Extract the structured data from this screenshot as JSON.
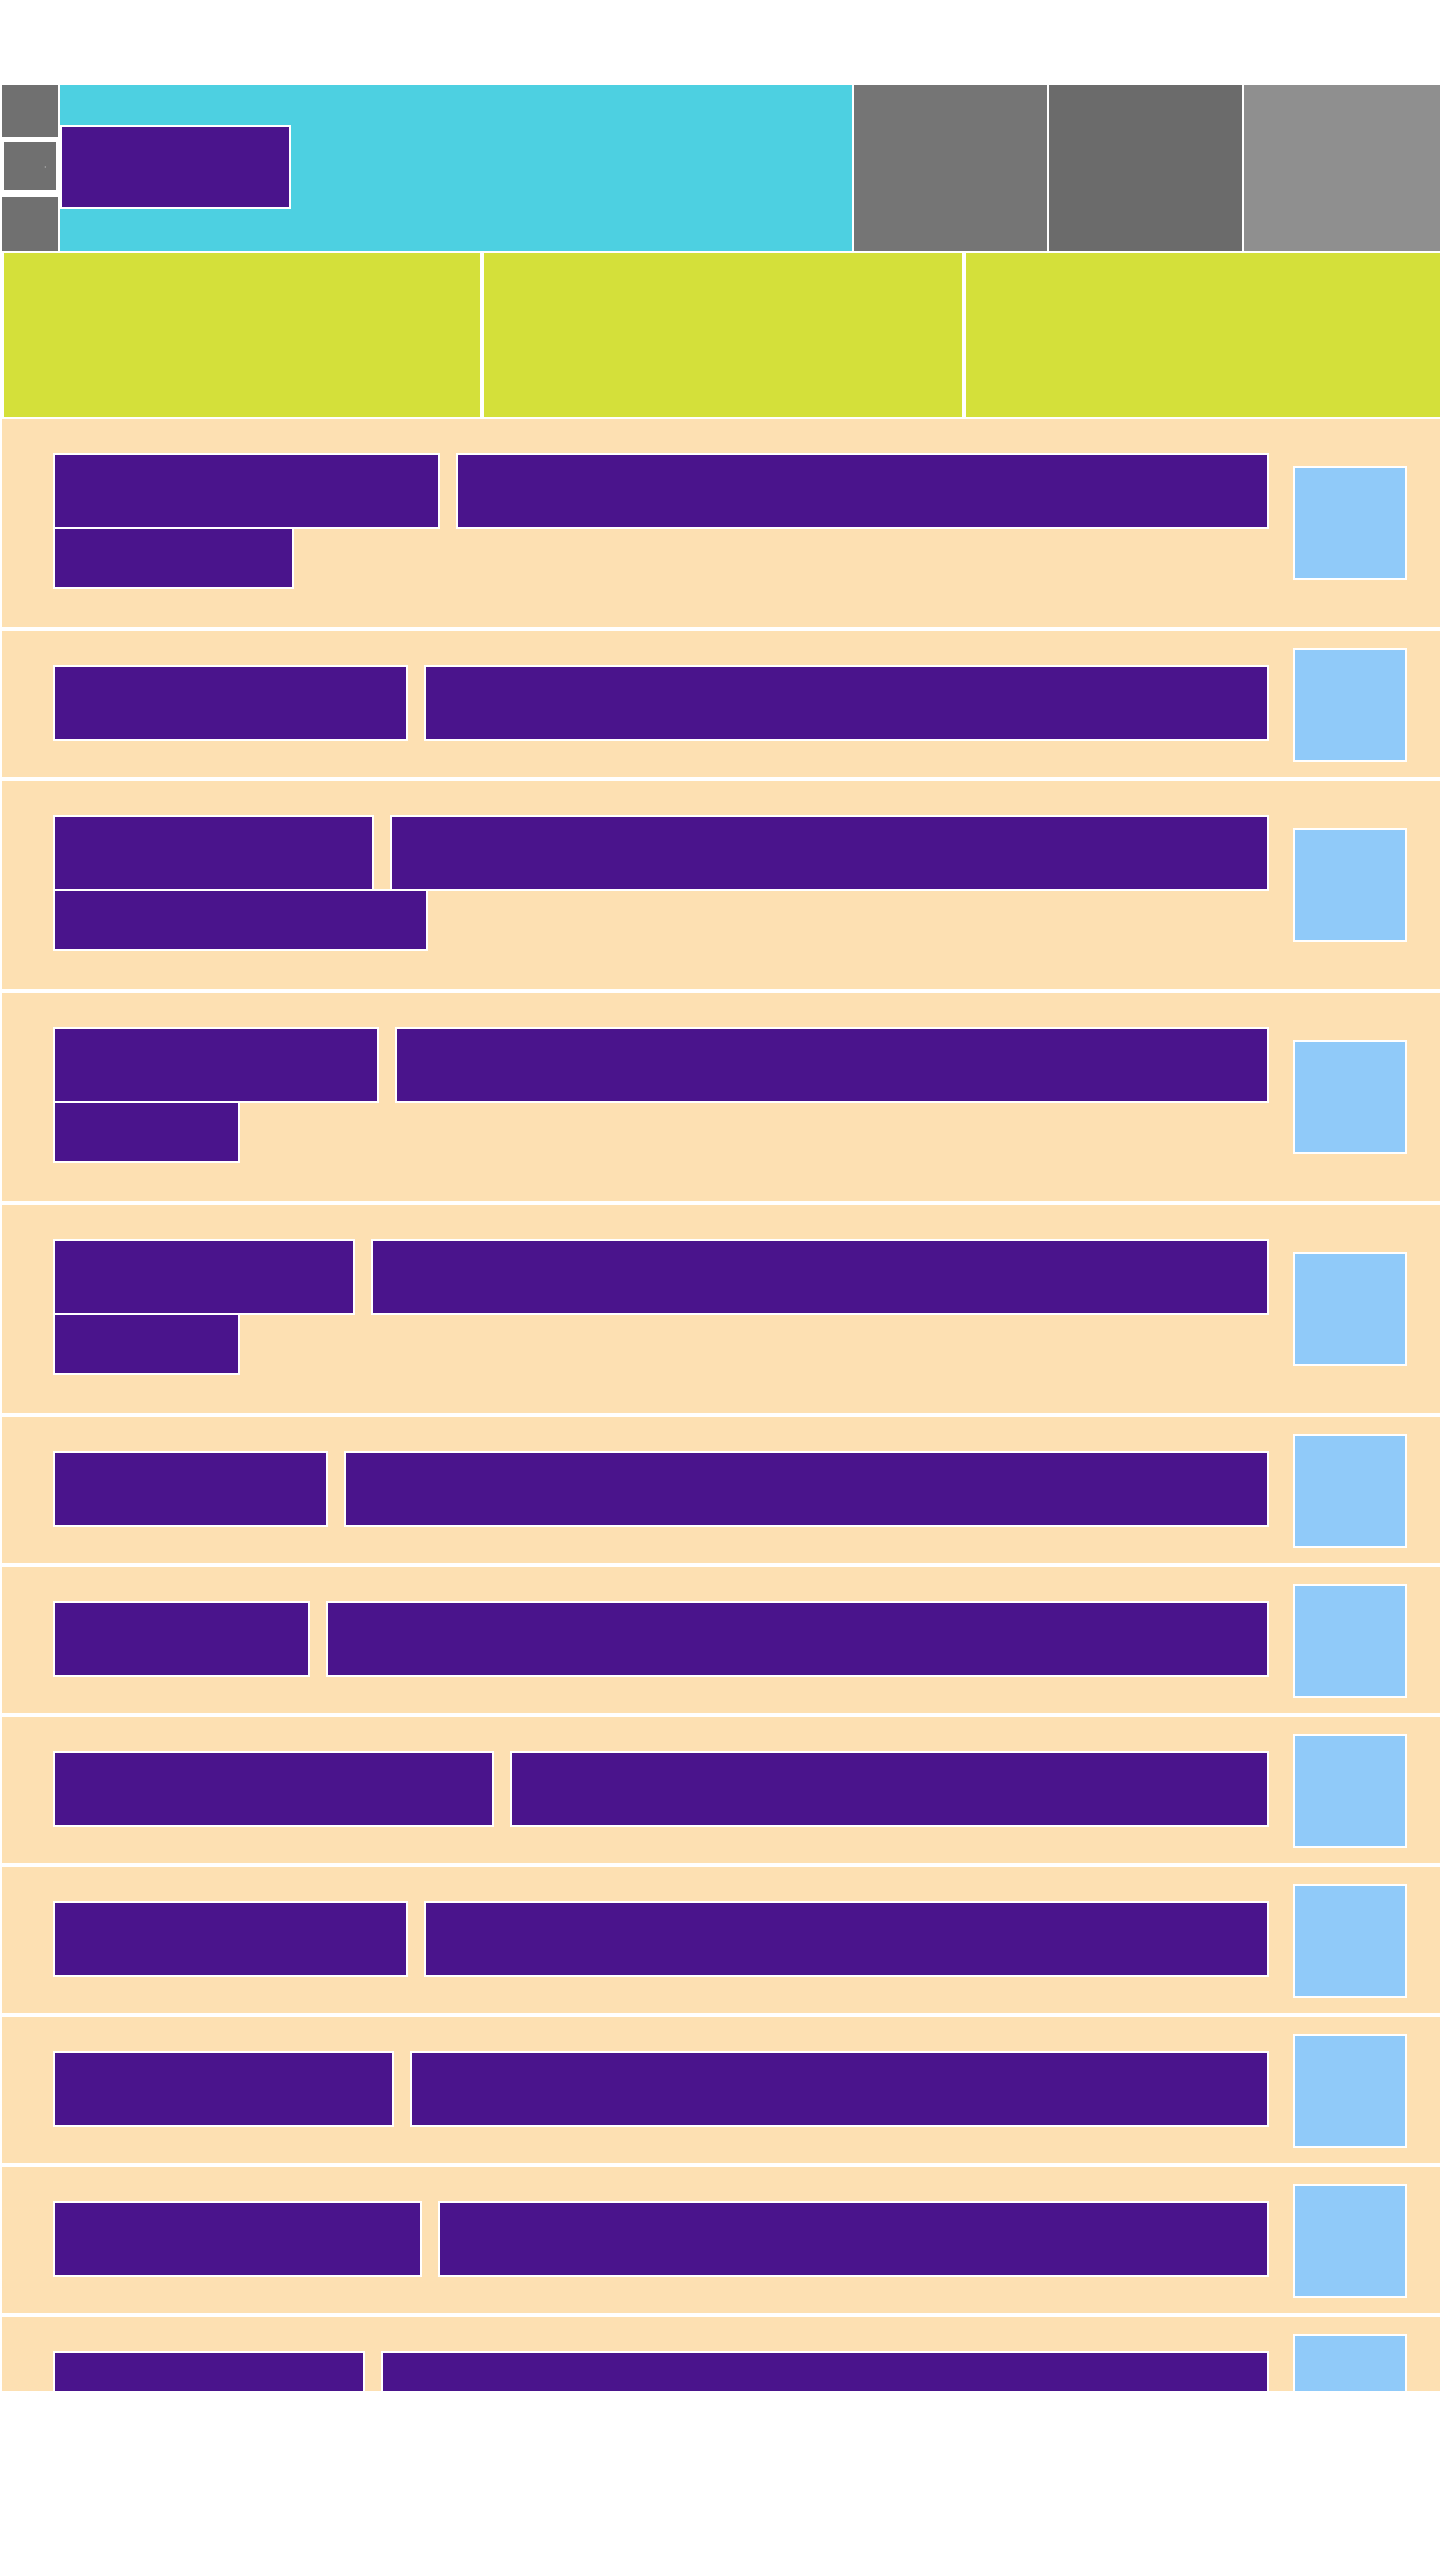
{
  "colors": {
    "header_cyan": "#4dd0e1",
    "text_block_purple": "#4a148c",
    "tab_lime": "#d4e03a",
    "row_peach": "#fde0b2",
    "thumbnail_blue": "#90caf9",
    "tile_gray_1": "#757575",
    "tile_gray_2": "#6b6b6b",
    "tile_gray_3": "#8f8f8f"
  },
  "header": {
    "title": "",
    "side_buttons": [
      {
        "icon": "menu-icon"
      },
      {
        "icon": "dot-icon",
        "glyph": "·"
      },
      {
        "icon": "menu-icon"
      }
    ],
    "tiles": [
      {
        "icon": "tile-1"
      },
      {
        "icon": "tile-2"
      },
      {
        "icon": "tile-3"
      }
    ]
  },
  "tabs": [
    {
      "label": ""
    },
    {
      "label": ""
    },
    {
      "label": ""
    }
  ],
  "list": {
    "items": [
      {
        "title": "",
        "detail": "",
        "extra": ""
      },
      {
        "title": "",
        "detail": ""
      },
      {
        "title": "",
        "detail": "",
        "extra": ""
      },
      {
        "title": "",
        "detail": "",
        "extra": ""
      },
      {
        "title": "",
        "detail": "",
        "extra": ""
      },
      {
        "title": "",
        "detail": ""
      },
      {
        "title": "",
        "detail": ""
      },
      {
        "title": "",
        "detail": ""
      },
      {
        "title": "",
        "detail": ""
      },
      {
        "title": "",
        "detail": ""
      },
      {
        "title": "",
        "detail": ""
      },
      {
        "title": "",
        "detail": ""
      }
    ]
  }
}
